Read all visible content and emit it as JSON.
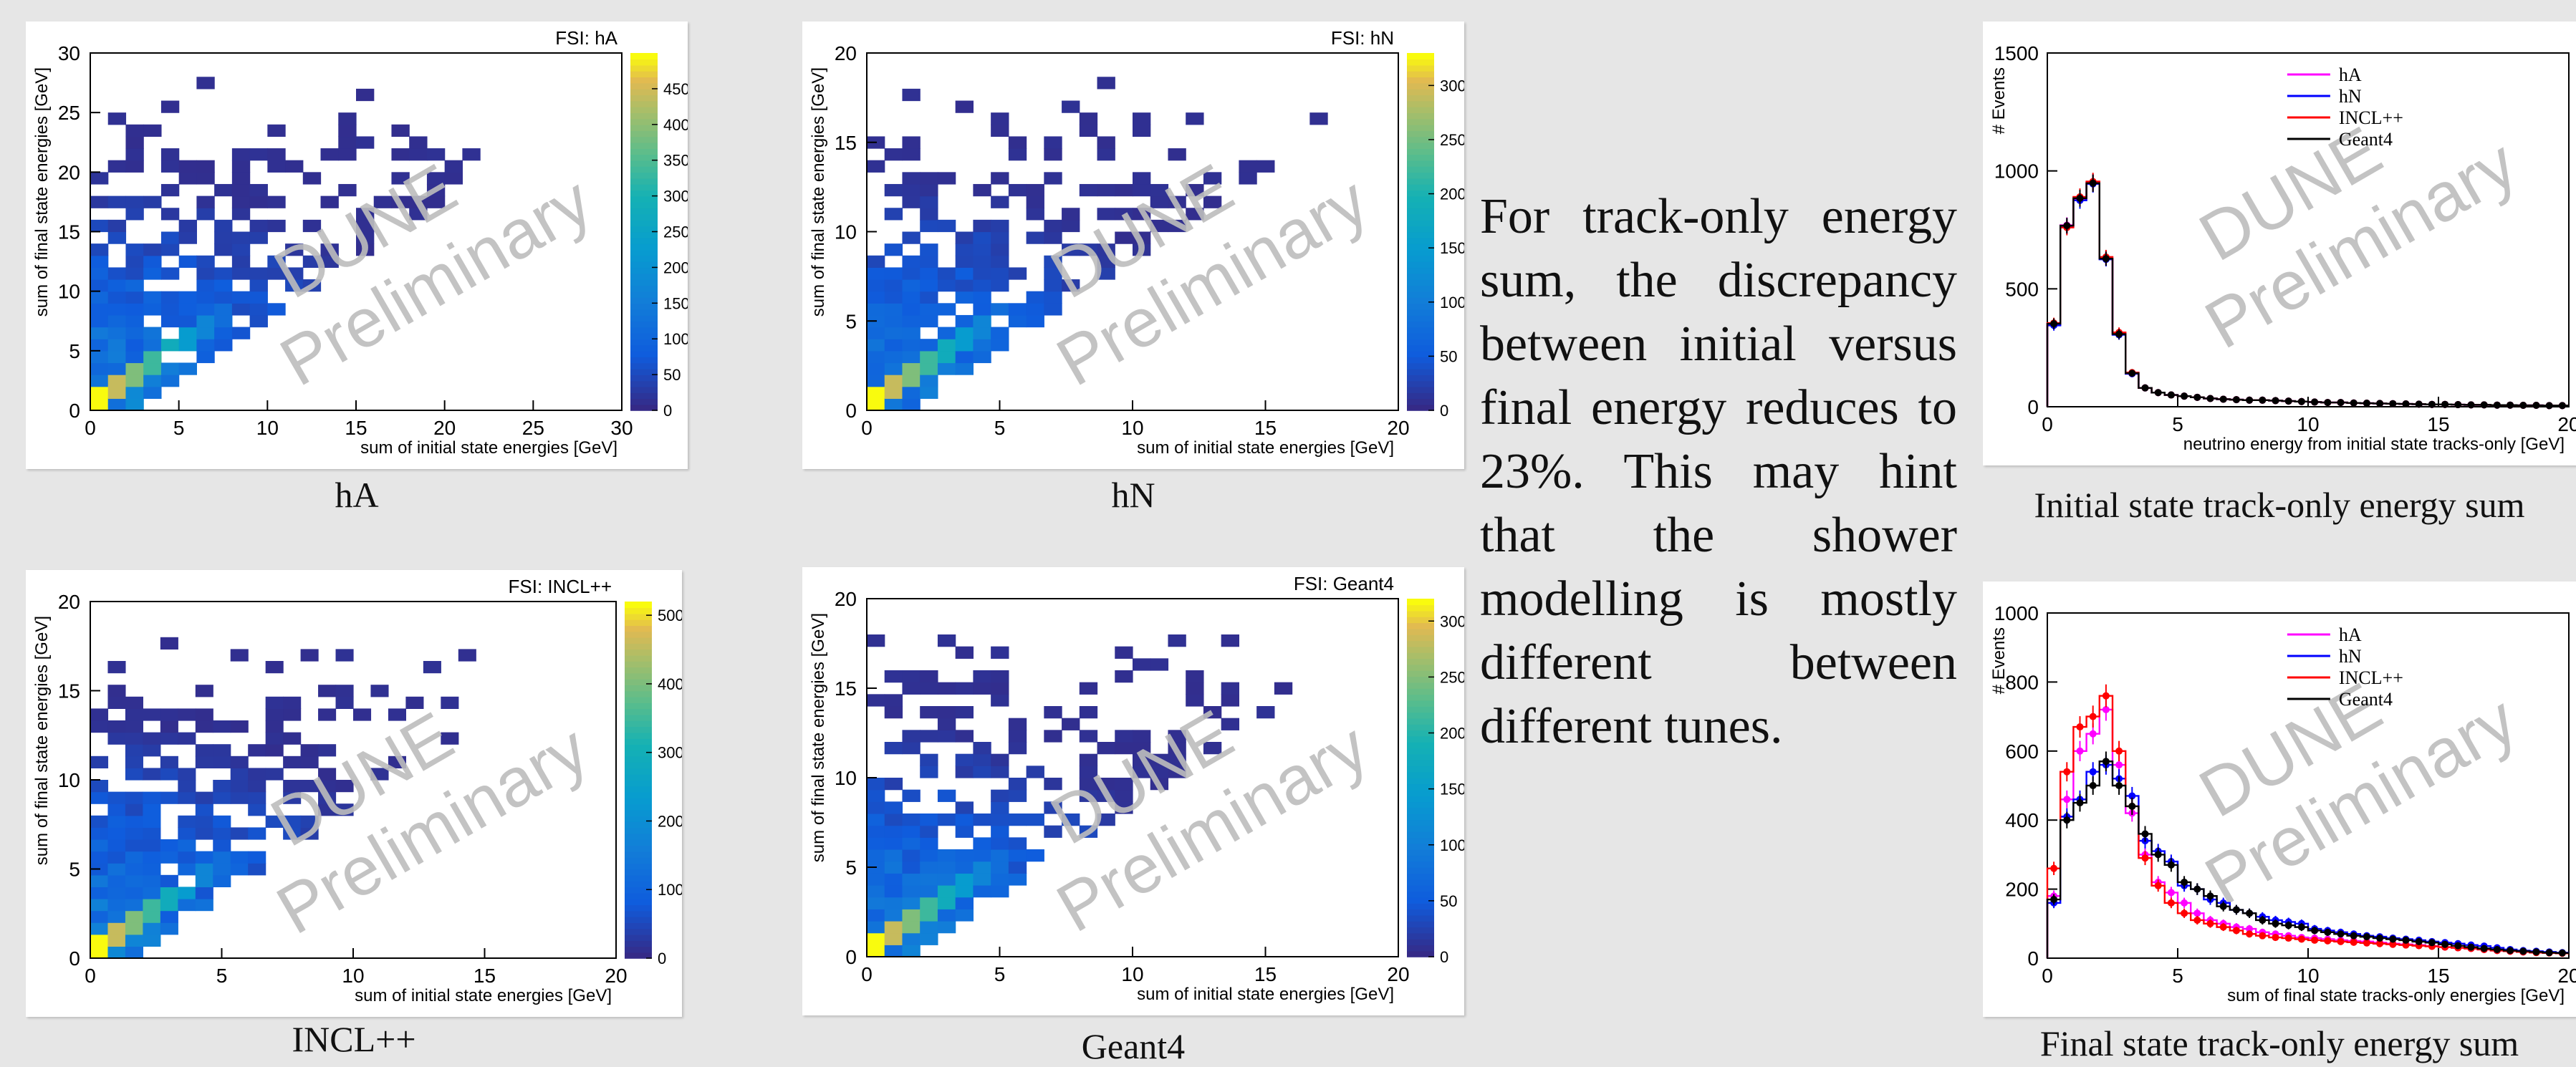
{
  "watermark": [
    "DUNE",
    "Preliminary"
  ],
  "prose": "For track-only energy sum, the discrepancy between initial versus final energy reduces to 23%. This may hint that the shower modelling is mostly different between different tunes.",
  "heatmaps": [
    {
      "caption": "hA",
      "title": "FSI: hA",
      "range": 30,
      "xticks": [
        0,
        5,
        10,
        15,
        20,
        25,
        30
      ],
      "yticks": [
        0,
        5,
        10,
        15,
        20,
        25,
        30
      ],
      "zmax": 500,
      "zticks": [
        0,
        50,
        100,
        150,
        200,
        250,
        300,
        350,
        400,
        450
      ],
      "xlabel": "sum of initial state energies [GeV]",
      "ylabel": "sum of final state energies [GeV]"
    },
    {
      "caption": "hN",
      "title": "FSI: hN",
      "range": 20,
      "xticks": [
        0,
        5,
        10,
        15,
        20
      ],
      "yticks": [
        0,
        5,
        10,
        15,
        20
      ],
      "zmax": 330,
      "zticks": [
        0,
        50,
        100,
        150,
        200,
        250,
        300
      ],
      "xlabel": "sum of initial state energies [GeV]",
      "ylabel": "sum of final state energies [GeV]"
    },
    {
      "caption": "INCL++",
      "title": "FSI: INCL++",
      "range": 20,
      "xticks": [
        0,
        5,
        10,
        15,
        20
      ],
      "yticks": [
        0,
        5,
        10,
        15,
        20
      ],
      "zmax": 520,
      "zticks": [
        0,
        100,
        200,
        300,
        400,
        500
      ],
      "xlabel": "sum of initial state energies [GeV]",
      "ylabel": "sum of final state energies [GeV]"
    },
    {
      "caption": "Geant4",
      "title": "FSI: Geant4",
      "range": 20,
      "xticks": [
        0,
        5,
        10,
        15,
        20
      ],
      "yticks": [
        0,
        5,
        10,
        15,
        20
      ],
      "zmax": 320,
      "zticks": [
        0,
        50,
        100,
        150,
        200,
        250,
        300
      ],
      "xlabel": "sum of initial state energies [GeV]",
      "ylabel": "sum of final state energies [GeV]"
    }
  ],
  "chart_data": [
    {
      "type": "line",
      "caption": "Initial state track-only energy sum",
      "xlabel": "neutrino energy from initial state tracks-only [GeV]",
      "ylabel": "# Events",
      "xlim": [
        0,
        20
      ],
      "ylim": [
        0,
        1500
      ],
      "xticks": [
        0,
        5,
        10,
        15,
        20
      ],
      "yticks": [
        0,
        500,
        1000,
        1500
      ],
      "legend_position": "top-right",
      "x": [
        0.25,
        0.75,
        1.25,
        1.75,
        2.25,
        2.75,
        3.25,
        3.75,
        4.25,
        4.75,
        5.25,
        5.75,
        6.25,
        6.75,
        7.25,
        7.75,
        8.25,
        8.75,
        9.25,
        9.75,
        10.25,
        10.75,
        11.25,
        11.75,
        12.25,
        12.75,
        13.25,
        13.75,
        14.25,
        14.75,
        15.25,
        15.75,
        16.25,
        16.75,
        17.25,
        17.75,
        18.25,
        18.75,
        19.25,
        19.75
      ],
      "series": [
        {
          "name": "hA",
          "color": "#ff00ff",
          "values": [
            350,
            770,
            880,
            950,
            630,
            310,
            140,
            80,
            60,
            50,
            45,
            40,
            35,
            32,
            30,
            28,
            28,
            26,
            24,
            22,
            20,
            18,
            18,
            16,
            15,
            14,
            13,
            12,
            11,
            10,
            10,
            9,
            8,
            8,
            7,
            7,
            6,
            6,
            5,
            5
          ]
        },
        {
          "name": "hN",
          "color": "#0000ff",
          "values": [
            345,
            765,
            875,
            945,
            625,
            305,
            140,
            80,
            60,
            50,
            45,
            40,
            35,
            32,
            30,
            28,
            28,
            26,
            24,
            22,
            20,
            18,
            18,
            16,
            15,
            14,
            13,
            12,
            11,
            10,
            10,
            9,
            8,
            8,
            7,
            7,
            6,
            6,
            5,
            5
          ]
        },
        {
          "name": "INCL++",
          "color": "#ff0000",
          "values": [
            355,
            760,
            890,
            955,
            635,
            315,
            145,
            80,
            60,
            50,
            45,
            40,
            35,
            32,
            30,
            28,
            28,
            26,
            24,
            22,
            20,
            18,
            18,
            16,
            15,
            14,
            13,
            12,
            11,
            10,
            10,
            9,
            8,
            8,
            7,
            7,
            6,
            6,
            5,
            5
          ]
        },
        {
          "name": "Geant4",
          "color": "#000000",
          "values": [
            352,
            768,
            884,
            948,
            628,
            308,
            142,
            80,
            60,
            50,
            45,
            40,
            35,
            32,
            30,
            28,
            28,
            26,
            24,
            22,
            20,
            18,
            18,
            16,
            15,
            14,
            13,
            12,
            11,
            10,
            10,
            9,
            8,
            8,
            7,
            7,
            6,
            6,
            5,
            5
          ]
        }
      ]
    },
    {
      "type": "line",
      "caption": "Final state track-only energy sum",
      "xlabel": "sum of final state tracks-only energies [GeV]",
      "ylabel": "# Events",
      "xlim": [
        0,
        20
      ],
      "ylim": [
        0,
        1000
      ],
      "xticks": [
        0,
        5,
        10,
        15,
        20
      ],
      "yticks": [
        0,
        200,
        400,
        600,
        800,
        1000
      ],
      "legend_position": "top-right",
      "x": [
        0.25,
        0.75,
        1.25,
        1.75,
        2.25,
        2.75,
        3.25,
        3.75,
        4.25,
        4.75,
        5.25,
        5.75,
        6.25,
        6.75,
        7.25,
        7.75,
        8.25,
        8.75,
        9.25,
        9.75,
        10.25,
        10.75,
        11.25,
        11.75,
        12.25,
        12.75,
        13.25,
        13.75,
        14.25,
        14.75,
        15.25,
        15.75,
        16.25,
        16.75,
        17.25,
        17.75,
        18.25,
        18.75,
        19.25,
        19.75
      ],
      "series": [
        {
          "name": "hA",
          "color": "#ff00ff",
          "values": [
            180,
            460,
            600,
            650,
            720,
            560,
            420,
            300,
            220,
            190,
            160,
            130,
            110,
            100,
            90,
            85,
            75,
            70,
            65,
            60,
            58,
            55,
            52,
            50,
            48,
            45,
            42,
            40,
            38,
            35,
            32,
            30,
            28,
            25,
            22,
            20,
            18,
            17,
            16,
            15
          ]
        },
        {
          "name": "hN",
          "color": "#0000ff",
          "values": [
            160,
            410,
            460,
            540,
            560,
            520,
            470,
            340,
            310,
            280,
            210,
            200,
            170,
            160,
            140,
            130,
            120,
            110,
            105,
            100,
            85,
            80,
            75,
            70,
            65,
            62,
            58,
            55,
            52,
            48,
            45,
            42,
            38,
            35,
            30,
            25,
            22,
            20,
            18,
            16
          ]
        },
        {
          "name": "INCL++",
          "color": "#ff0000",
          "values": [
            260,
            540,
            670,
            700,
            760,
            600,
            440,
            290,
            210,
            160,
            130,
            110,
            100,
            90,
            80,
            70,
            65,
            60,
            58,
            55,
            52,
            50,
            48,
            46,
            44,
            42,
            40,
            38,
            36,
            34,
            32,
            30,
            28,
            25,
            22,
            20,
            18,
            16,
            15,
            14
          ]
        },
        {
          "name": "Geant4",
          "color": "#000000",
          "values": [
            170,
            400,
            450,
            500,
            570,
            500,
            440,
            360,
            300,
            270,
            220,
            200,
            180,
            150,
            140,
            130,
            110,
            100,
            95,
            90,
            80,
            75,
            70,
            65,
            62,
            58,
            55,
            52,
            48,
            45,
            40,
            36,
            32,
            28,
            25,
            22,
            20,
            18,
            16,
            15
          ]
        }
      ]
    }
  ]
}
